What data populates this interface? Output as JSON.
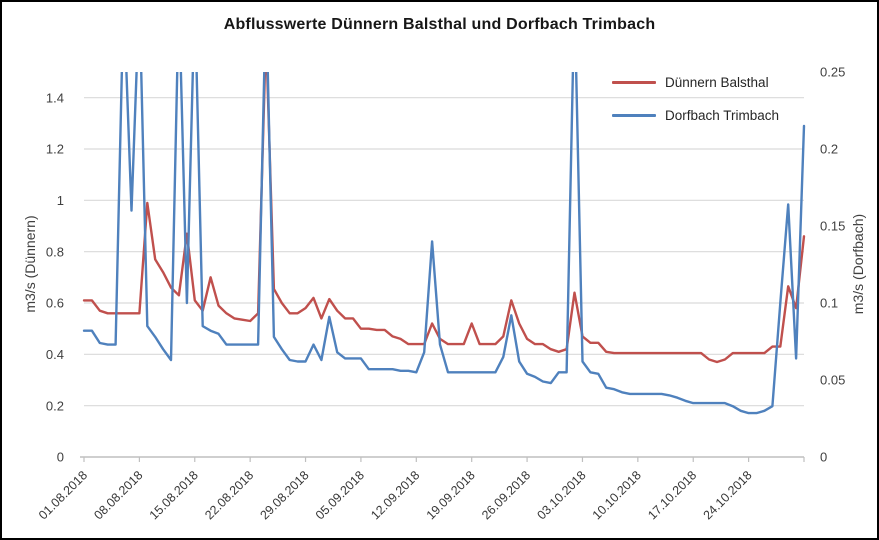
{
  "chart": {
    "title": "Abflusswerte Dünnern Balsthal und Dorfbach Trimbach",
    "left_axis": {
      "title": "m3/s (Dünnern)",
      "max": 1.5,
      "ticks": [
        {
          "label": "0",
          "value": 0
        },
        {
          "label": "0.2",
          "value": 0.2
        },
        {
          "label": "0.4",
          "value": 0.4
        },
        {
          "label": "0.6",
          "value": 0.6
        },
        {
          "label": "0.8",
          "value": 0.8
        },
        {
          "label": "1",
          "value": 1
        },
        {
          "label": "1.2",
          "value": 1.2
        },
        {
          "label": "1.4",
          "value": 1.4
        }
      ]
    },
    "right_axis": {
      "title": "m3/s (Dorfbach)",
      "max": 0.25,
      "ticks": [
        {
          "label": "0",
          "value": 0
        },
        {
          "label": "0.05",
          "value": 0.05
        },
        {
          "label": "0.1",
          "value": 0.1
        },
        {
          "label": "0.15",
          "value": 0.15
        },
        {
          "label": "0.2",
          "value": 0.2
        },
        {
          "label": "0.25",
          "value": 0.25
        }
      ]
    },
    "x_axis": {
      "labels": [
        "01.08.2018",
        "08.08.2018",
        "15.08.2018",
        "22.08.2018",
        "29.08.2018",
        "05.09.2018",
        "12.09.2018",
        "19.09.2018",
        "26.09.2018",
        "03.10.2018",
        "10.10.2018",
        "17.10.2018",
        "24.10.2018"
      ],
      "tick_interval_days": 7
    },
    "colors": {
      "gridline": "#D9D9D9",
      "axis_line": "#BFBFBF",
      "tick_text": "#404040",
      "title_text": "#171717"
    }
  },
  "chart_data": {
    "type": "line",
    "x_start": "01.08.2018",
    "x_end": "31.10.2018",
    "frequency": "daily",
    "note": "Values above the axis maximum (1.5 left / 0.25 right) are spikes clipped at the top of the plot area.",
    "series": [
      {
        "name": "Dünnern Balsthal",
        "axis": "left",
        "color": "#C0504D",
        "values": [
          0.61,
          0.61,
          0.57,
          0.56,
          0.56,
          0.56,
          0.56,
          0.56,
          0.99,
          0.77,
          0.72,
          0.66,
          0.63,
          0.87,
          0.61,
          0.57,
          0.7,
          0.59,
          0.56,
          0.54,
          0.535,
          0.53,
          0.56,
          1.65,
          0.655,
          0.6,
          0.56,
          0.56,
          0.58,
          0.62,
          0.54,
          0.615,
          0.57,
          0.54,
          0.54,
          0.5,
          0.5,
          0.495,
          0.495,
          0.47,
          0.46,
          0.44,
          0.44,
          0.44,
          0.52,
          0.46,
          0.44,
          0.44,
          0.44,
          0.52,
          0.44,
          0.44,
          0.44,
          0.47,
          0.61,
          0.52,
          0.46,
          0.44,
          0.44,
          0.42,
          0.41,
          0.42,
          0.64,
          0.47,
          0.445,
          0.445,
          0.41,
          0.405,
          0.405,
          0.405,
          0.405,
          0.405,
          0.405,
          0.405,
          0.405,
          0.405,
          0.405,
          0.405,
          0.405,
          0.38,
          0.37,
          0.38,
          0.405,
          0.405,
          0.405,
          0.405,
          0.405,
          0.43,
          0.43,
          0.665,
          0.58,
          0.86
        ]
      },
      {
        "name": "Dorfbach Trimbach",
        "axis": "right",
        "color": "#4F81BD",
        "values": [
          0.082,
          0.082,
          0.074,
          0.073,
          0.073,
          0.3,
          0.16,
          0.3,
          0.085,
          0.078,
          0.07,
          0.063,
          0.3,
          0.1,
          0.3,
          0.085,
          0.082,
          0.08,
          0.073,
          0.073,
          0.073,
          0.073,
          0.073,
          0.3,
          0.078,
          0.07,
          0.063,
          0.062,
          0.062,
          0.073,
          0.063,
          0.091,
          0.068,
          0.064,
          0.064,
          0.064,
          0.057,
          0.057,
          0.057,
          0.057,
          0.056,
          0.056,
          0.055,
          0.068,
          0.14,
          0.073,
          0.055,
          0.055,
          0.055,
          0.055,
          0.055,
          0.055,
          0.055,
          0.065,
          0.092,
          0.062,
          0.054,
          0.052,
          0.049,
          0.048,
          0.055,
          0.055,
          0.3,
          0.062,
          0.055,
          0.054,
          0.045,
          0.044,
          0.042,
          0.041,
          0.041,
          0.041,
          0.041,
          0.041,
          0.04,
          0.0385,
          0.0365,
          0.035,
          0.035,
          0.035,
          0.035,
          0.035,
          0.033,
          0.03,
          0.0285,
          0.0285,
          0.03,
          0.033,
          0.1,
          0.164,
          0.064,
          0.215
        ]
      }
    ]
  }
}
